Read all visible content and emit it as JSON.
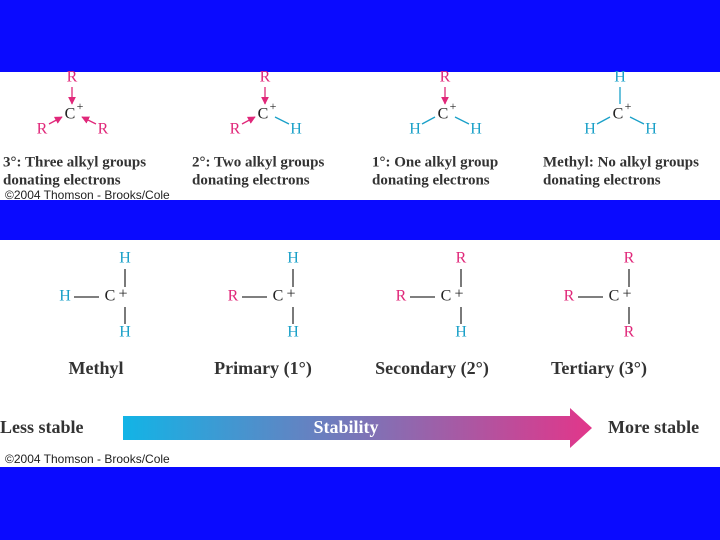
{
  "top": {
    "structures": [
      {
        "top": "R",
        "left": "R",
        "right": "R",
        "center": "C",
        "charge": "+",
        "caption": [
          "3°: Three alkyl groups",
          "donating electrons"
        ]
      },
      {
        "top": "R",
        "left": "R",
        "right": "H",
        "center": "C",
        "charge": "+",
        "caption": [
          "2°: Two alkyl groups",
          "donating electrons"
        ]
      },
      {
        "top": "R",
        "left": "H",
        "right": "H",
        "center": "C",
        "charge": "+",
        "caption": [
          "1°: One alkyl group",
          "donating electrons"
        ]
      },
      {
        "top": "H",
        "left": "H",
        "right": "H",
        "center": "C",
        "charge": "+",
        "caption": [
          "Methyl: No alkyl groups",
          "donating electrons"
        ]
      }
    ],
    "credit": "©2004 Thomson - Brooks/Cole"
  },
  "bottom": {
    "structures": [
      {
        "top": "H",
        "left": "H",
        "bottom": "H",
        "center": "C",
        "charge": "+",
        "name": "Methyl"
      },
      {
        "top": "H",
        "left": "R",
        "bottom": "H",
        "center": "C",
        "charge": "+",
        "name": "Primary (1°)"
      },
      {
        "top": "R",
        "left": "R",
        "bottom": "H",
        "center": "C",
        "charge": "+",
        "name": "Secondary (2°)"
      },
      {
        "top": "R",
        "left": "R",
        "bottom": "R",
        "center": "C",
        "charge": "+",
        "name": "Tertiary (3°)"
      }
    ],
    "arrow": {
      "left": "Less stable",
      "label": "Stability",
      "right": "More stable"
    },
    "credit": "©2004 Thomson - Brooks/Cole"
  }
}
